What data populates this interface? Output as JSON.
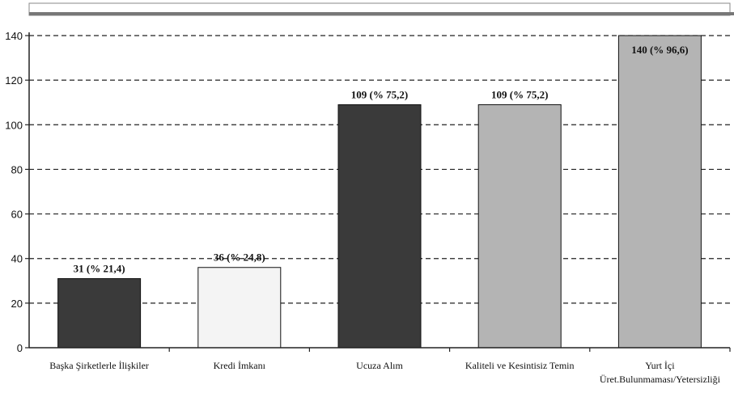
{
  "chart_data": {
    "type": "bar",
    "categories": [
      [
        "Başka Şirketlerle İlişkiler"
      ],
      [
        "Kredi İmkanı"
      ],
      [
        "Ucuza Alım"
      ],
      [
        "Kaliteli ve Kesintisiz Temin"
      ],
      [
        "Yurt İçi",
        "Üret.Bulunmaması/Yetersizliği"
      ]
    ],
    "values": [
      31,
      36,
      109,
      109,
      140
    ],
    "data_labels": [
      "31 (% 21,4)",
      "36 (% 24,8)",
      "109 (% 75,2)",
      "109 (% 75,2)",
      "140 (% 96,6)"
    ],
    "bar_colors": [
      "#3a3a3a",
      "#f4f4f4",
      "#3a3a3a",
      "#b4b4b4",
      "#b4b4b4"
    ],
    "ylim": [
      0,
      140
    ],
    "yticks": [
      0,
      20,
      40,
      60,
      80,
      100,
      120,
      140
    ],
    "grid": true,
    "grid_style": "dashed"
  }
}
